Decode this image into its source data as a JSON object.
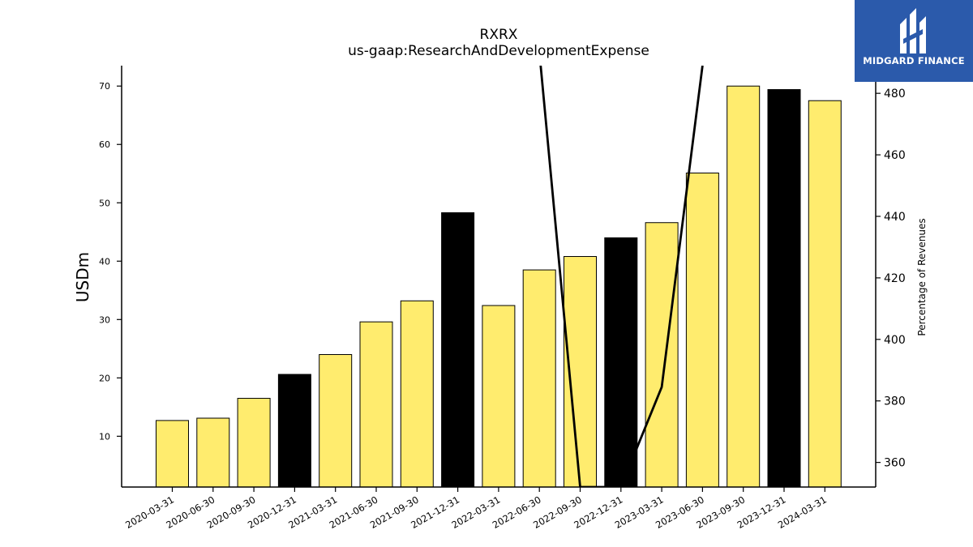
{
  "chart_data": {
    "type": "bar",
    "title": "RXRX",
    "subtitle": "us-gaap:ResearchAndDevelopmentExpense",
    "ylabel": "USDm",
    "y2label": "Percentage of Revenues",
    "categories": [
      "2020-03-31",
      "2020-06-30",
      "2020-09-30",
      "2020-12-31",
      "2021-03-31",
      "2021-06-30",
      "2021-09-30",
      "2021-12-31",
      "2022-03-31",
      "2022-06-30",
      "2022-09-30",
      "2022-12-31",
      "2023-03-31",
      "2023-06-30",
      "2023-09-30",
      "2023-12-31",
      "2024-03-31"
    ],
    "values": [
      12.7,
      13.1,
      16.5,
      20.6,
      24.0,
      29.6,
      33.2,
      48.3,
      32.4,
      38.5,
      40.8,
      44.0,
      46.6,
      55.1,
      70.0,
      69.4,
      67.5
    ],
    "bar_colors": [
      "#ffec6e",
      "#ffec6e",
      "#ffec6e",
      "#000000",
      "#ffec6e",
      "#ffec6e",
      "#ffec6e",
      "#000000",
      "#ffec6e",
      "#ffec6e",
      "#ffec6e",
      "#000000",
      "#ffec6e",
      "#ffec6e",
      "#ffec6e",
      "#000000",
      "#ffec6e"
    ],
    "ylim": [
      1.3,
      73.5
    ],
    "yticks": [
      10,
      20,
      30,
      40,
      50,
      60,
      70
    ],
    "y2lim": [
      352,
      489
    ],
    "y2ticks": [
      360,
      380,
      400,
      420,
      440,
      460,
      480
    ],
    "line_series": {
      "x": [
        "2022-06-30",
        "2022-09-30",
        "2022-12-31",
        "2023-03-31",
        "2023-06-30"
      ],
      "y": [
        493.5,
        352,
        352,
        384.5,
        489
      ]
    },
    "line_color": "#000000",
    "grid": false
  },
  "logo": {
    "text": "MIDGARD FINANCE",
    "background": "#2b5aab"
  }
}
